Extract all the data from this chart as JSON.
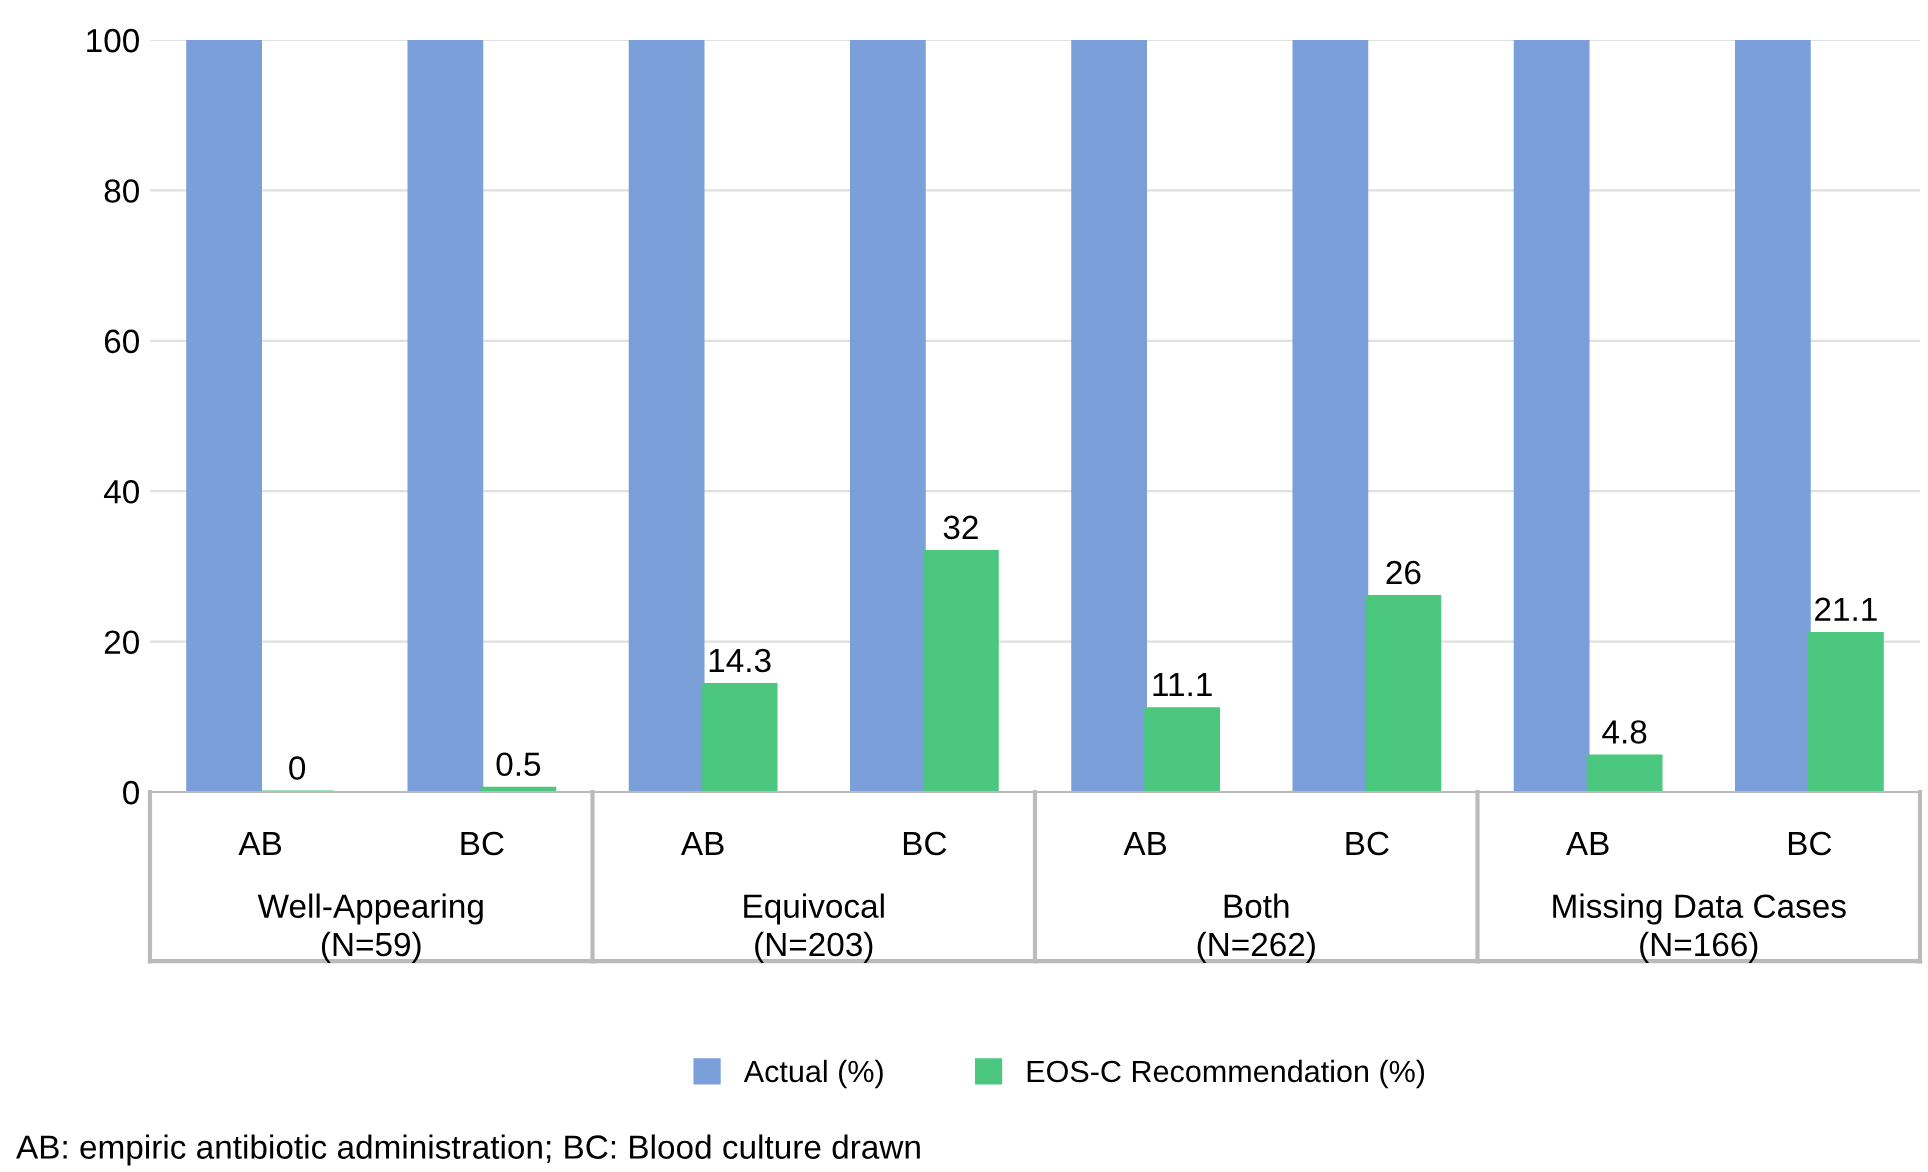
{
  "chart_data": {
    "type": "bar",
    "categories": [
      "AB",
      "BC",
      "AB",
      "BC",
      "AB",
      "BC",
      "AB",
      "BC"
    ],
    "series": [
      {
        "name": "Actual (%)",
        "color": "#7b9fd9",
        "values": [
          100,
          100,
          100,
          100,
          100,
          100,
          100,
          100
        ]
      },
      {
        "name": "EOS-C Recommendation (%)",
        "color": "#4cc77f",
        "values": [
          0,
          0.5,
          14.3,
          32,
          11.1,
          26,
          4.8,
          21.1
        ],
        "value_labels": [
          "0",
          "0.5",
          "14.3",
          "32",
          "11.1",
          "26",
          "4.8",
          "21.1"
        ]
      }
    ],
    "ylim": [
      0,
      100
    ],
    "yticks": [
      0,
      20,
      40,
      60,
      80,
      100
    ],
    "grid": "y",
    "legend": "bottom",
    "annotations": [
      "Well-Appearing\n(N=59)",
      "Equivocal\n(N=203)",
      "Both\n(N=262)",
      "Missing Data Cases\n(N=166)",
      "AB: empiric antibiotic administration; BC: Blood culture drawn"
    ]
  }
}
